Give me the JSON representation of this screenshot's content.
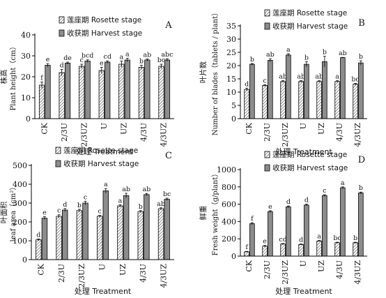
{
  "chart_data": [
    {
      "type": "bar",
      "panel": "A",
      "ylabel_cn": "株高",
      "ylabel_en": "Plant height（cm）",
      "xlabel": "处理 Treatment",
      "ylim": [
        0,
        40
      ],
      "ticks": [
        0,
        10,
        20,
        30,
        40
      ],
      "categories": [
        "CK",
        "2/3U",
        "2/3UZ",
        "U",
        "UZ",
        "4/3U",
        "4/3UZ"
      ],
      "series": [
        {
          "name": "莲座期 Rosette stage",
          "values": [
            16,
            22,
            25,
            23,
            26,
            24.5,
            25
          ],
          "errors": [
            1.5,
            1.5,
            1,
            1.5,
            1.5,
            1,
            1
          ],
          "letters": [
            "f",
            "d",
            "c",
            "e",
            "a",
            "b",
            "bc"
          ]
        },
        {
          "name": "收获期 Harvest stage",
          "values": [
            25.5,
            26.5,
            27.5,
            27,
            28,
            28,
            28
          ],
          "errors": [
            0.8,
            0.5,
            0.6,
            0.6,
            0.8,
            0.5,
            0.6
          ],
          "letters": [
            "e",
            "de",
            "bcd",
            "cd",
            "a",
            "ab",
            "abc"
          ]
        }
      ]
    },
    {
      "type": "bar",
      "panel": "B",
      "ylabel_cn": "叶片数",
      "ylabel_en": "Number of blades（tablets / plant）",
      "xlabel": "处理 Treatment",
      "ylim": [
        0,
        35
      ],
      "ticks": [
        0,
        5,
        10,
        15,
        20,
        25,
        30,
        35
      ],
      "categories": [
        "CK",
        "2/3U",
        "2/3UZ",
        "U",
        "UZ",
        "4/3U",
        "4/3UZ"
      ],
      "series": [
        {
          "name": "莲座期 Rosette stage",
          "values": [
            11,
            12.5,
            14,
            14,
            14,
            14,
            13
          ],
          "errors": [
            0.5,
            0.3,
            0.3,
            0.3,
            0.3,
            0.3,
            0.3
          ],
          "letters": [
            "d",
            "c",
            "ab",
            "ab",
            "ab",
            "a",
            "bc"
          ]
        },
        {
          "name": "收获期 Harvest stage",
          "values": [
            20.5,
            22,
            24,
            20.5,
            21.5,
            23,
            21
          ],
          "errors": [
            0.3,
            0.6,
            0.5,
            1,
            2,
            0.1,
            0.8
          ],
          "letters": [
            "b",
            "ab",
            "a",
            "b",
            "b",
            "ab",
            "b"
          ]
        }
      ]
    },
    {
      "type": "bar",
      "panel": "C",
      "ylabel_cn": "叶面积",
      "ylabel_en": "leaf area（cm²）",
      "xlabel": "处理 Treatment",
      "ylim": [
        0,
        500
      ],
      "ticks": [
        0,
        100,
        200,
        300,
        400,
        500
      ],
      "categories": [
        "CK",
        "2/3U",
        "2/3UZ",
        "U",
        "UZ",
        "4/3U",
        "4/3UZ"
      ],
      "series": [
        {
          "name": "莲座期 Rosette stage",
          "values": [
            105,
            230,
            260,
            230,
            285,
            255,
            270
          ],
          "errors": [
            5,
            8,
            7,
            5,
            6,
            5,
            5
          ],
          "letters": [
            "d",
            "c",
            "b",
            "c",
            "a",
            "b",
            "ab"
          ]
        },
        {
          "name": "收获期 Harvest stage",
          "values": [
            220,
            263,
            300,
            365,
            340,
            345,
            320
          ],
          "errors": [
            8,
            8,
            10,
            12,
            12,
            6,
            6
          ],
          "letters": [
            "e",
            "d",
            "c",
            "a",
            "ab",
            "ab",
            "bc"
          ]
        }
      ]
    },
    {
      "type": "bar",
      "panel": "D",
      "ylabel_cn": "鲜重",
      "ylabel_en": "Fresh weight（g/plant）",
      "xlabel": "处理 Treatment",
      "ylim": [
        0,
        1000
      ],
      "ticks": [
        0,
        200,
        400,
        600,
        800,
        1000
      ],
      "categories": [
        "CK",
        "2/3U",
        "2/3UZ",
        "U",
        "UZ",
        "4/3U",
        "4/3UZ"
      ],
      "series": [
        {
          "name": "莲座期 Rosette stage",
          "values": [
            50,
            115,
            140,
            135,
            175,
            155,
            155
          ],
          "errors": [
            5,
            8,
            6,
            6,
            6,
            6,
            6
          ],
          "letters": [
            "f",
            "e",
            "cd",
            "d",
            "a",
            "bc",
            "b"
          ]
        },
        {
          "name": "收获期 Harvest stage",
          "values": [
            375,
            515,
            570,
            590,
            700,
            790,
            730
          ],
          "errors": [
            12,
            10,
            10,
            10,
            10,
            10,
            10
          ],
          "letters": [
            "f",
            "e",
            "d",
            "d",
            "c",
            "a",
            "b"
          ]
        }
      ]
    }
  ],
  "colors": {
    "rosette_fill": "#ffffff",
    "harvest_fill": "#8c8c8c",
    "axis": "#000000"
  }
}
